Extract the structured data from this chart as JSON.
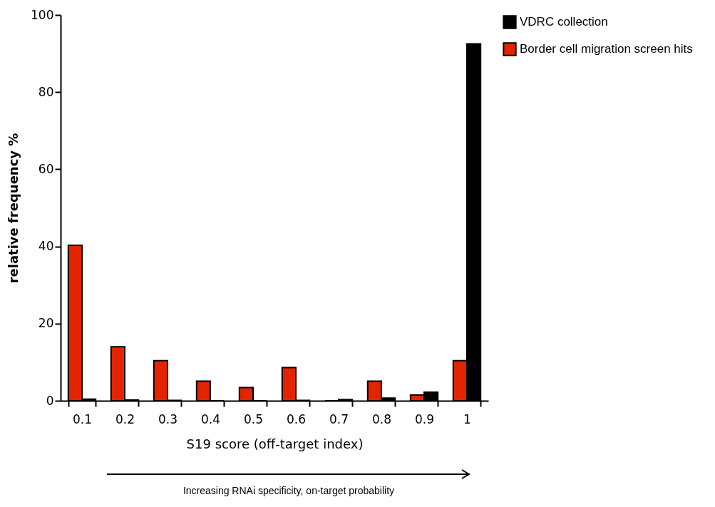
{
  "chart_data": {
    "type": "bar",
    "ylabel": "relative frequency %",
    "xlabel": "S19 score (off-target index)",
    "categories": [
      "0.1",
      "0.2",
      "0.3",
      "0.4",
      "0.5",
      "0.6",
      "0.7",
      "0.8",
      "0.9",
      "1"
    ],
    "series": [
      {
        "name": "Border cell migration screen hits",
        "color": "#e32400",
        "values": [
          40.3,
          14,
          10.4,
          5.1,
          3.4,
          8.6,
          0,
          5.1,
          1.5,
          10.4
        ]
      },
      {
        "name": "VDRC collection",
        "color": "#000000",
        "values": [
          0.4,
          0.2,
          0.1,
          0,
          0,
          0.1,
          0.3,
          0.7,
          2.2,
          92.5
        ]
      }
    ],
    "ylim": [
      0,
      100
    ],
    "yticks": [
      0,
      20,
      40,
      60,
      80,
      100
    ],
    "grid": false,
    "legend": "right",
    "annotations": [
      "Increasing RNAi specificity, on-target probability"
    ]
  }
}
